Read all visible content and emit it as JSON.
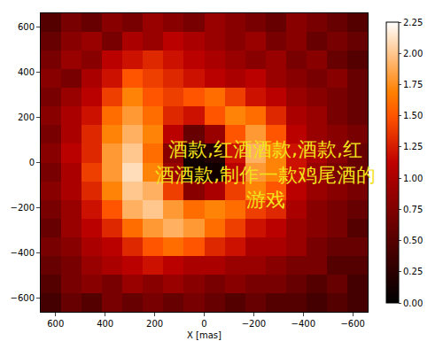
{
  "chart_data": {
    "type": "heatmap",
    "x_label": "X [mas]",
    "annotation": [
      "酒款,红酒酒款,酒款,红",
      "酒酒款,制作一款鸡尾酒的",
      "游戏"
    ],
    "xlim": [
      660,
      -660
    ],
    "ylim": [
      -660,
      660
    ],
    "xticks": [
      600,
      400,
      200,
      0,
      -200,
      -400,
      -600
    ],
    "yticks": [
      600,
      400,
      200,
      0,
      -200,
      -400,
      -600
    ],
    "x": [
      618.75,
      536.25,
      453.75,
      371.25,
      288.75,
      206.25,
      123.75,
      41.25,
      -41.25,
      -123.75,
      -206.25,
      -288.75,
      -371.25,
      -453.75,
      -536.25,
      -618.75
    ],
    "y": [
      618.75,
      536.25,
      453.75,
      371.25,
      288.75,
      206.25,
      123.75,
      41.25,
      -41.25,
      -123.75,
      -206.25,
      -288.75,
      -371.25,
      -453.75,
      -536.25,
      -618.75
    ],
    "cells": [
      [
        0.5,
        0.7,
        0.6,
        0.8,
        0.7,
        0.9,
        0.8,
        0.7,
        0.9,
        0.8,
        0.7,
        0.6,
        0.8,
        0.7,
        0.6,
        0.5
      ],
      [
        0.6,
        0.8,
        0.9,
        0.7,
        1.0,
        0.9,
        1.1,
        1.0,
        0.9,
        0.8,
        0.9,
        0.7,
        0.8,
        0.6,
        0.7,
        0.6
      ],
      [
        0.7,
        0.9,
        0.8,
        1.1,
        1.2,
        1.3,
        1.2,
        1.1,
        1.0,
        0.9,
        0.8,
        0.9,
        0.7,
        0.8,
        0.6,
        0.5
      ],
      [
        0.8,
        0.7,
        1.0,
        1.2,
        1.5,
        1.4,
        1.3,
        1.2,
        1.1,
        1.0,
        1.1,
        0.9,
        0.8,
        0.7,
        0.8,
        0.6
      ],
      [
        0.7,
        0.9,
        1.1,
        1.4,
        1.7,
        1.5,
        1.4,
        1.5,
        1.6,
        1.4,
        1.2,
        1.1,
        0.9,
        0.8,
        0.7,
        0.6
      ],
      [
        0.8,
        1.0,
        1.2,
        1.6,
        1.8,
        1.6,
        1.3,
        1.2,
        1.5,
        1.7,
        1.6,
        1.3,
        1.0,
        0.9,
        0.7,
        0.6
      ],
      [
        0.7,
        1.0,
        1.3,
        1.7,
        1.9,
        1.7,
        1.1,
        0.6,
        0.9,
        1.5,
        1.8,
        1.5,
        1.1,
        0.9,
        0.8,
        0.7
      ],
      [
        0.8,
        1.1,
        1.3,
        1.8,
        2.0,
        1.6,
        0.8,
        0.1,
        0.2,
        1.2,
        1.9,
        1.7,
        1.2,
        1.0,
        0.8,
        0.6
      ],
      [
        0.7,
        1.0,
        1.4,
        1.8,
        2.1,
        1.7,
        0.9,
        0.1,
        0.1,
        1.1,
        1.8,
        1.7,
        1.2,
        0.9,
        0.7,
        0.6
      ],
      [
        0.8,
        1.0,
        1.3,
        1.7,
        2.0,
        1.9,
        1.4,
        0.8,
        1.0,
        1.4,
        1.7,
        1.5,
        1.1,
        0.9,
        0.8,
        0.7
      ],
      [
        0.7,
        0.9,
        1.2,
        1.5,
        1.9,
        2.0,
        1.8,
        1.6,
        1.7,
        1.6,
        1.4,
        1.3,
        1.0,
        0.8,
        0.7,
        0.6
      ],
      [
        0.6,
        0.9,
        1.1,
        1.3,
        1.6,
        1.8,
        1.9,
        1.8,
        1.6,
        1.4,
        1.2,
        1.1,
        0.9,
        0.8,
        0.7,
        0.5
      ],
      [
        0.7,
        0.8,
        1.0,
        1.1,
        1.3,
        1.5,
        1.6,
        1.5,
        1.3,
        1.2,
        1.0,
        1.0,
        0.9,
        0.7,
        0.6,
        0.6
      ],
      [
        0.6,
        0.7,
        0.9,
        1.0,
        1.1,
        1.2,
        1.1,
        1.0,
        1.0,
        0.9,
        0.9,
        0.8,
        0.7,
        0.7,
        0.5,
        0.5
      ],
      [
        0.5,
        0.7,
        0.8,
        0.7,
        0.9,
        0.8,
        0.9,
        0.8,
        0.7,
        0.8,
        0.7,
        0.7,
        0.6,
        0.5,
        0.6,
        0.4
      ],
      [
        0.4,
        0.6,
        0.5,
        0.7,
        0.6,
        0.7,
        0.6,
        0.7,
        0.6,
        0.5,
        0.6,
        0.5,
        0.5,
        0.4,
        0.5,
        0.4
      ]
    ],
    "colorbar": {
      "range": [
        0,
        2.25
      ],
      "ticks": [
        {
          "value": 0,
          "label": "0.00"
        },
        {
          "value": 0.25,
          "label": "0.25"
        },
        {
          "value": 0.5,
          "label": "0.50"
        },
        {
          "value": 0.75,
          "label": "0.75"
        },
        {
          "value": 1,
          "label": "1.00"
        },
        {
          "value": 1.25,
          "label": "1.25"
        },
        {
          "value": 1.5,
          "label": "1.50"
        },
        {
          "value": 1.75,
          "label": "1.75"
        },
        {
          "value": 2,
          "label": "2.00"
        },
        {
          "value": 2.25,
          "label": "2.25"
        }
      ]
    }
  }
}
